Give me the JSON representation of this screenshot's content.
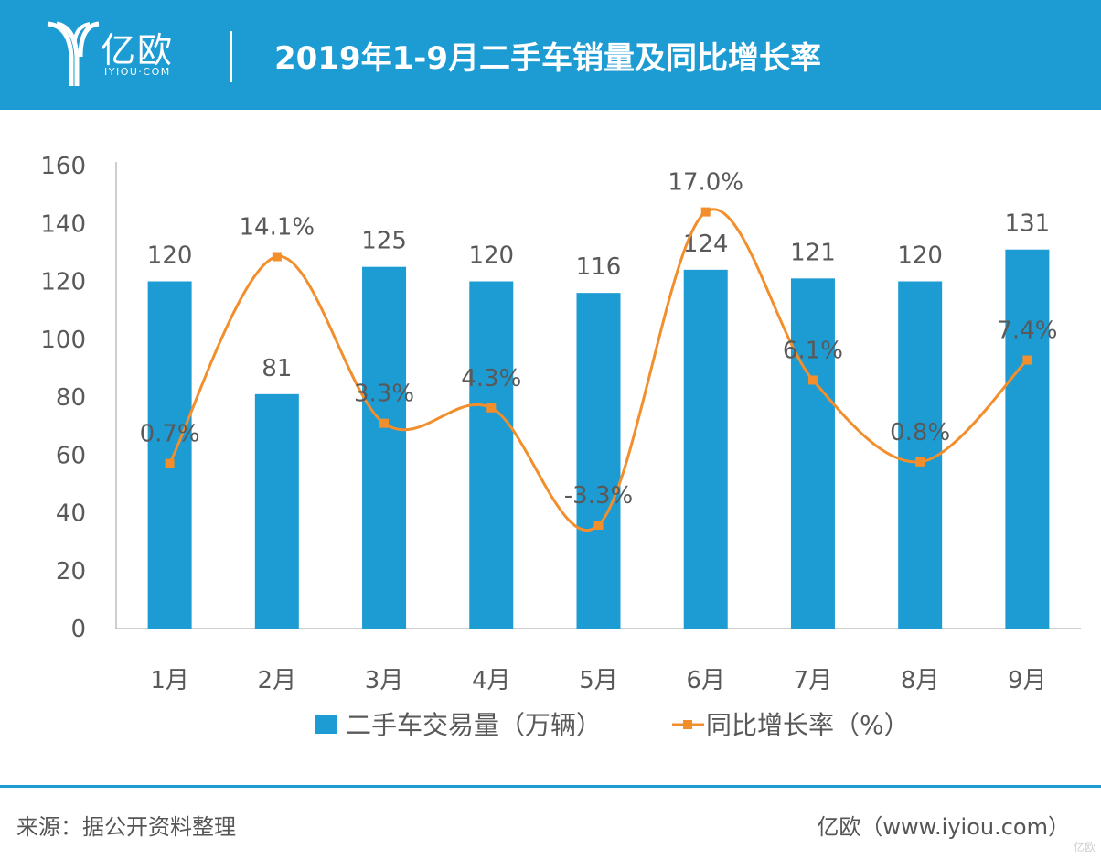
{
  "header": {
    "brand": "亿欧",
    "brand_sub": "IYIOU·COM",
    "title": "2019年1-9月二手车销量及同比增长率",
    "background": "#1d9bd3"
  },
  "footer": {
    "source": "来源：据公开资料整理",
    "site": "亿欧（www.iyiou.com）",
    "watermark": "亿欧"
  },
  "chart_data": {
    "type": "bar",
    "categories": [
      "1月",
      "2月",
      "3月",
      "4月",
      "5月",
      "6月",
      "7月",
      "8月",
      "9月"
    ],
    "ylim": [
      0,
      160
    ],
    "yticks": [
      0,
      20,
      40,
      60,
      80,
      100,
      120,
      140,
      160
    ],
    "grid": false,
    "legend_position": "bottom",
    "series": [
      {
        "name": "二手车交易量（万辆）",
        "type": "bar",
        "color": "#1d9bd3",
        "values": [
          120,
          81,
          125,
          120,
          116,
          124,
          121,
          120,
          131
        ],
        "labels": [
          "120",
          "81",
          "125",
          "120",
          "116",
          "124",
          "121",
          "120",
          "131"
        ]
      },
      {
        "name": "同比增长率（%）",
        "type": "line",
        "color": "#f28e2b",
        "smooth": true,
        "values": [
          0.7,
          14.1,
          3.3,
          4.3,
          -3.3,
          17.0,
          6.1,
          0.8,
          7.4
        ],
        "labels": [
          "0.7%",
          "14.1%",
          "3.3%",
          "4.3%",
          "-3.3%",
          "17.0%",
          "6.1%",
          "0.8%",
          "7.4%"
        ],
        "secondary_range": [
          -10,
          20
        ]
      }
    ]
  }
}
